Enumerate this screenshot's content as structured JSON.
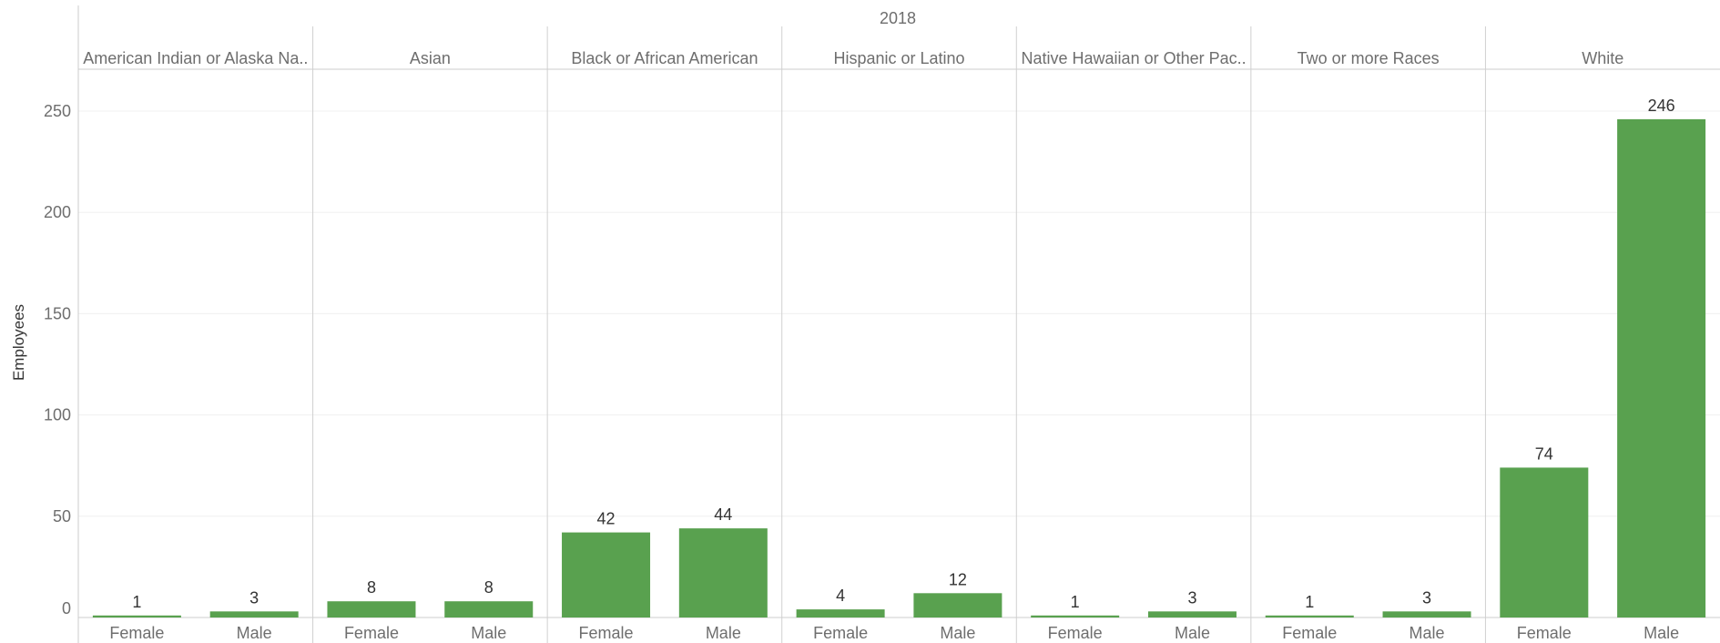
{
  "chart_data": {
    "type": "bar",
    "title": "2018",
    "ylabel": "Employees",
    "ylim": [
      0,
      270
    ],
    "yticks": [
      0,
      50,
      100,
      150,
      200,
      250
    ],
    "grid": true,
    "bar_color": "#59a14f",
    "groups": [
      {
        "name": "American Indian or Alaska Na..",
        "categories": [
          "Female",
          "Male"
        ],
        "values": [
          1,
          3
        ]
      },
      {
        "name": "Asian",
        "categories": [
          "Female",
          "Male"
        ],
        "values": [
          8,
          8
        ]
      },
      {
        "name": "Black or African American",
        "categories": [
          "Female",
          "Male"
        ],
        "values": [
          42,
          44
        ]
      },
      {
        "name": "Hispanic or Latino",
        "categories": [
          "Female",
          "Male"
        ],
        "values": [
          4,
          12
        ]
      },
      {
        "name": "Native Hawaiian or Other Pac..",
        "categories": [
          "Female",
          "Male"
        ],
        "values": [
          1,
          3
        ]
      },
      {
        "name": "Two or more Races",
        "categories": [
          "Female",
          "Male"
        ],
        "values": [
          1,
          3
        ]
      },
      {
        "name": "White",
        "categories": [
          "Female",
          "Male"
        ],
        "values": [
          74,
          246
        ]
      }
    ]
  }
}
